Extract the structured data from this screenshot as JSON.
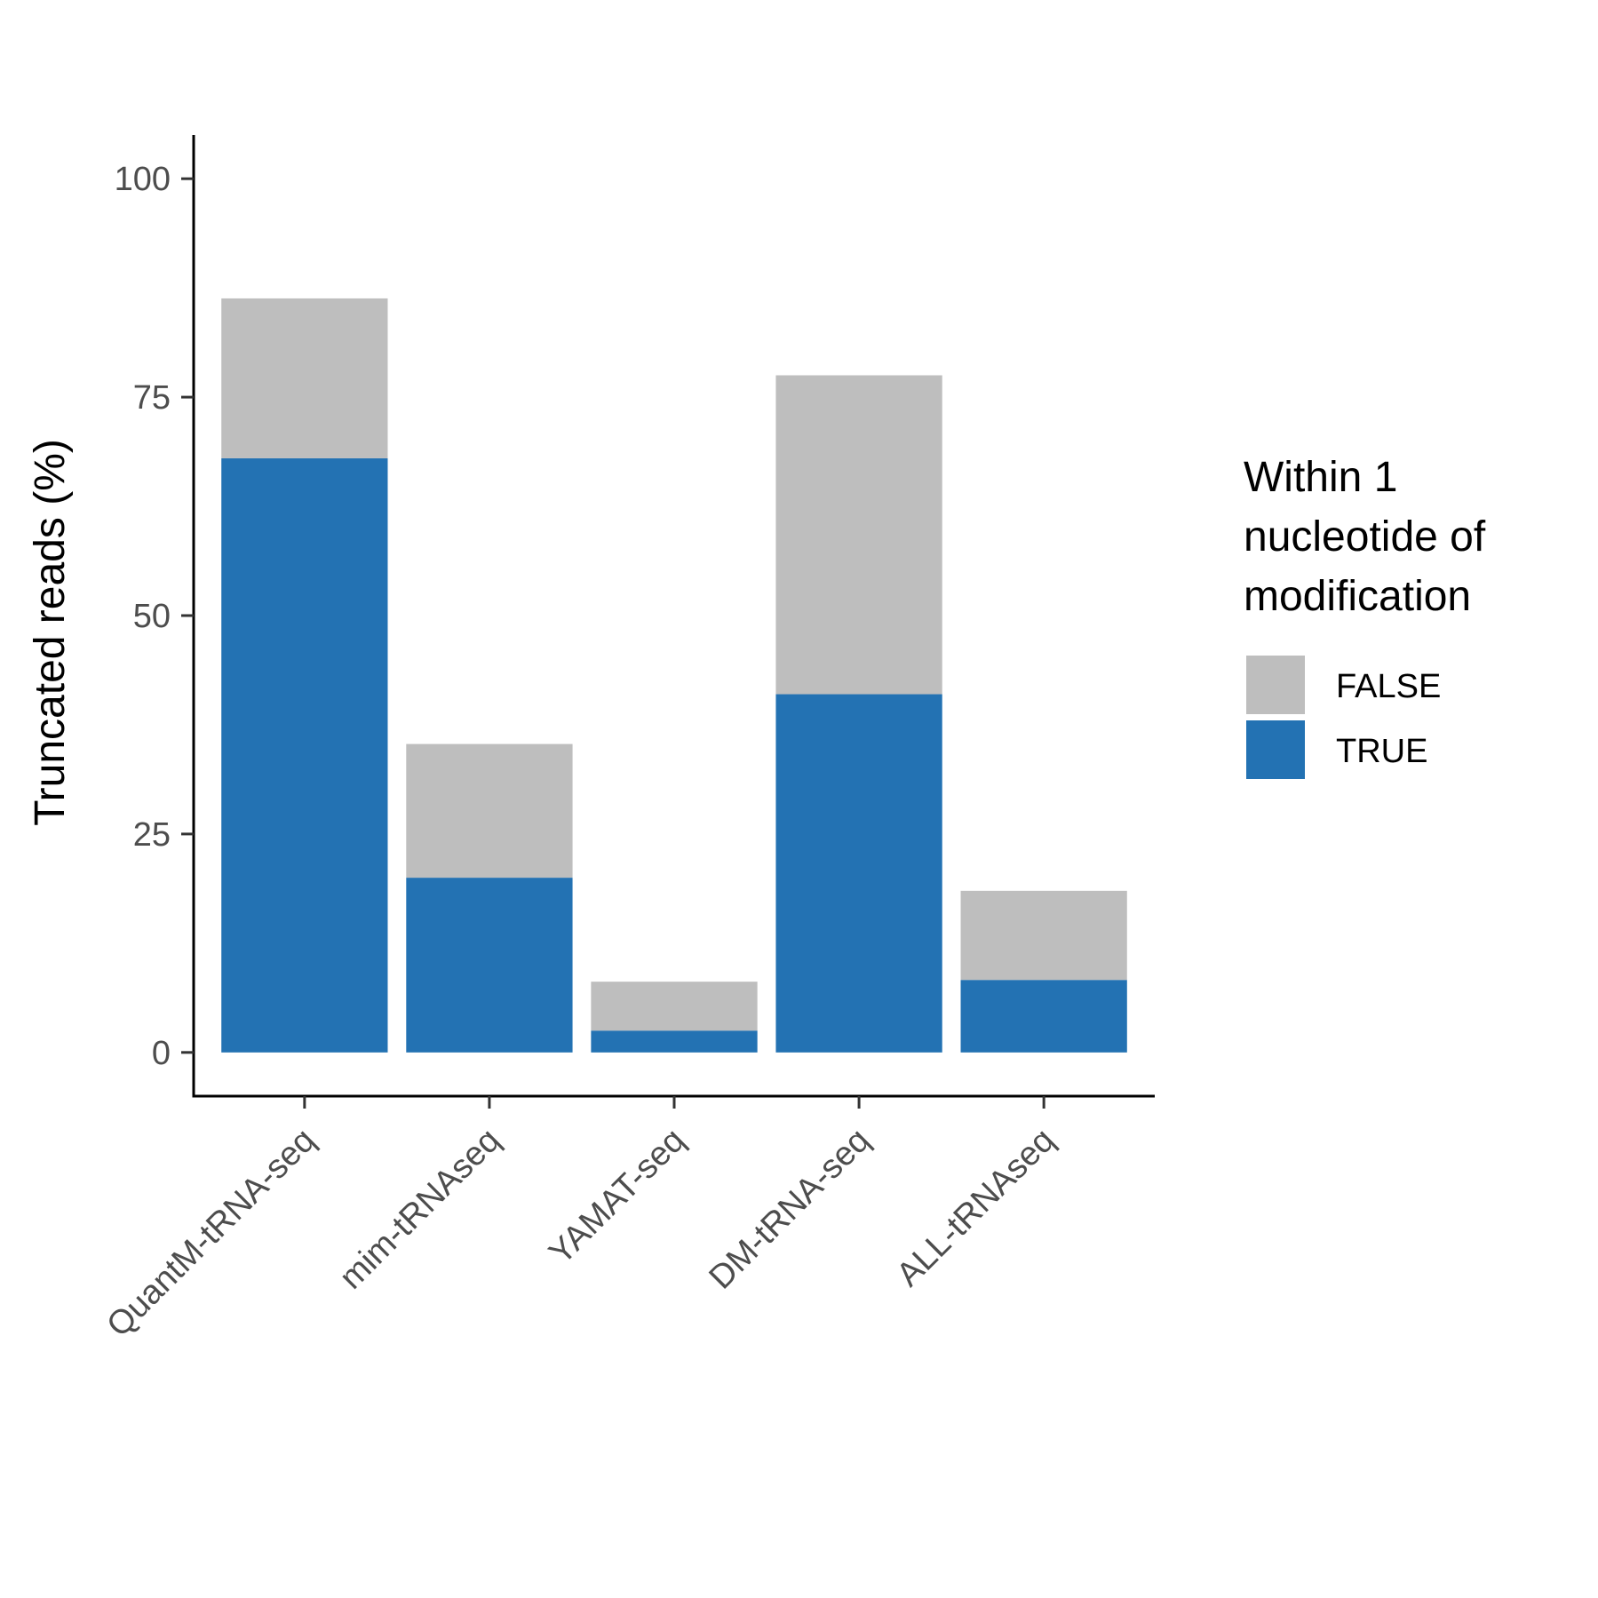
{
  "chart_data": {
    "type": "bar",
    "stacked": true,
    "categories": [
      "QuantM-tRNA-seq",
      "mim-tRNAseq",
      "YAMAT-seq",
      "DM-tRNA-seq",
      "ALL-tRNAseq"
    ],
    "series": [
      {
        "name": "TRUE",
        "color": "#2372b3",
        "values": [
          68.0,
          20.0,
          2.5,
          41.0,
          8.3
        ]
      },
      {
        "name": "FALSE",
        "color": "#bebebe",
        "values": [
          18.3,
          15.3,
          5.6,
          36.5,
          10.2
        ]
      }
    ],
    "title": "",
    "xlabel": "",
    "ylabel": "Truncated reads (%)",
    "ylim": [
      -5,
      105
    ],
    "yticks": [
      0,
      25,
      50,
      75,
      100
    ],
    "yticks_labels": [
      "0",
      "25",
      "50",
      "75",
      "100"
    ],
    "grid": false,
    "legend": {
      "title_lines": [
        "Within 1",
        "nucleotide of",
        "modification"
      ],
      "entries": [
        {
          "label": "FALSE",
          "color": "#bebebe"
        },
        {
          "label": "TRUE",
          "color": "#2372b3"
        }
      ],
      "position": "right"
    }
  }
}
